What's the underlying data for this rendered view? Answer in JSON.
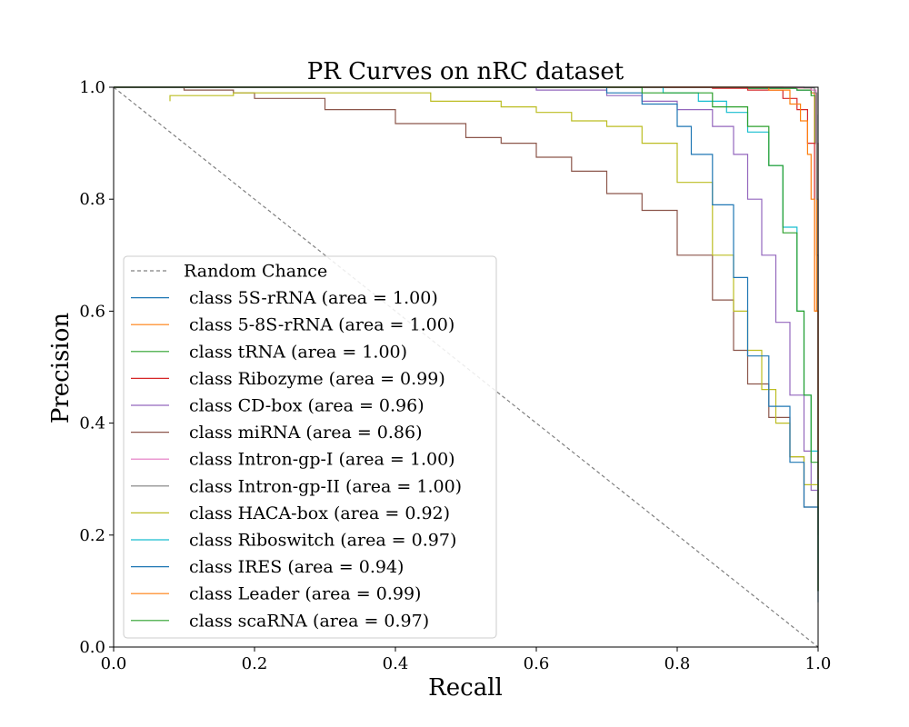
{
  "chart_data": {
    "type": "line",
    "title": "PR Curves on nRC dataset",
    "xlabel": "Recall",
    "ylabel": "Precision",
    "xlim": [
      0,
      1
    ],
    "ylim": [
      0,
      1
    ],
    "xticks": [
      "0.0",
      "0.2",
      "0.4",
      "0.6",
      "0.8",
      "1.0"
    ],
    "yticks": [
      "0.0",
      "0.2",
      "0.4",
      "0.6",
      "0.8",
      "1.0"
    ],
    "grid": false,
    "legend_position": "lower-left",
    "reference": {
      "name": "Random Chance",
      "color": "#808080",
      "style": "dashed",
      "points": [
        [
          0,
          1
        ],
        [
          1,
          0
        ]
      ]
    },
    "series": [
      {
        "name": " class 5S-rRNA (area = 1.00)",
        "color": "#1f77b4",
        "points": [
          [
            0,
            1.0
          ],
          [
            0.75,
            1.0
          ],
          [
            0.9,
            0.998
          ],
          [
            0.97,
            0.995
          ],
          [
            0.99,
            0.99
          ],
          [
            0.995,
            0.95
          ],
          [
            0.998,
            0.7
          ],
          [
            1.0,
            0.1
          ]
        ]
      },
      {
        "name": " class 5-8S-rRNA (area = 1.00)",
        "color": "#ff7f0e",
        "points": [
          [
            0,
            1.0
          ],
          [
            0.8,
            1.0
          ],
          [
            0.95,
            0.999
          ],
          [
            0.99,
            0.99
          ],
          [
            0.995,
            0.9
          ],
          [
            0.998,
            0.6
          ],
          [
            1.0,
            0.1
          ]
        ]
      },
      {
        "name": " class tRNA (area = 1.00)",
        "color": "#2ca02c",
        "points": [
          [
            0,
            1.0
          ],
          [
            0.7,
            1.0
          ],
          [
            0.9,
            0.998
          ],
          [
            0.97,
            0.995
          ],
          [
            0.99,
            0.985
          ],
          [
            0.996,
            0.9
          ],
          [
            1.0,
            0.1
          ]
        ]
      },
      {
        "name": " class Ribozyme (area = 0.99)",
        "color": "#d62728",
        "points": [
          [
            0,
            1.0
          ],
          [
            0.6,
            1.0
          ],
          [
            0.85,
            0.998
          ],
          [
            0.9,
            0.995
          ],
          [
            0.95,
            0.98
          ],
          [
            0.97,
            0.96
          ],
          [
            0.985,
            0.9
          ],
          [
            0.995,
            0.6
          ],
          [
            1.0,
            0.2
          ]
        ]
      },
      {
        "name": " class CD-box (area = 0.96)",
        "color": "#9467bd",
        "points": [
          [
            0,
            1.0
          ],
          [
            0.45,
            1.0
          ],
          [
            0.6,
            0.995
          ],
          [
            0.7,
            0.985
          ],
          [
            0.75,
            0.975
          ],
          [
            0.8,
            0.96
          ],
          [
            0.85,
            0.93
          ],
          [
            0.88,
            0.88
          ],
          [
            0.9,
            0.8
          ],
          [
            0.92,
            0.7
          ],
          [
            0.94,
            0.58
          ],
          [
            0.96,
            0.45
          ],
          [
            0.98,
            0.35
          ],
          [
            0.99,
            0.28
          ],
          [
            1.0,
            0.12
          ]
        ]
      },
      {
        "name": " class miRNA (area = 0.86)",
        "color": "#8c564b",
        "points": [
          [
            0,
            1.0
          ],
          [
            0.1,
            0.995
          ],
          [
            0.17,
            0.99
          ],
          [
            0.2,
            0.98
          ],
          [
            0.3,
            0.96
          ],
          [
            0.4,
            0.935
          ],
          [
            0.5,
            0.91
          ],
          [
            0.55,
            0.9
          ],
          [
            0.6,
            0.875
          ],
          [
            0.65,
            0.85
          ],
          [
            0.7,
            0.81
          ],
          [
            0.75,
            0.78
          ],
          [
            0.8,
            0.7
          ],
          [
            0.85,
            0.62
          ],
          [
            0.88,
            0.53
          ],
          [
            0.9,
            0.47
          ],
          [
            0.93,
            0.41
          ],
          [
            0.96,
            0.34
          ],
          [
            0.98,
            0.25
          ],
          [
            1.0,
            0.1
          ]
        ]
      },
      {
        "name": " class Intron-gp-I (area = 1.00)",
        "color": "#e377c2",
        "points": [
          [
            0,
            1.0
          ],
          [
            0.85,
            1.0
          ],
          [
            0.97,
            0.999
          ],
          [
            0.99,
            0.995
          ],
          [
            0.997,
            0.9
          ],
          [
            1.0,
            0.15
          ]
        ]
      },
      {
        "name": " class Intron-gp-II (area = 1.00)",
        "color": "#7f7f7f",
        "points": [
          [
            0,
            1.0
          ],
          [
            0.85,
            1.0
          ],
          [
            0.98,
            0.999
          ],
          [
            0.995,
            0.99
          ],
          [
            0.998,
            0.8
          ],
          [
            1.0,
            0.2
          ]
        ]
      },
      {
        "name": " class HACA-box (area = 0.92)",
        "color": "#bcbd22",
        "points": [
          [
            0.08,
            0.975
          ],
          [
            0.08,
            0.985
          ],
          [
            0.17,
            0.99
          ],
          [
            0.3,
            0.99
          ],
          [
            0.45,
            0.975
          ],
          [
            0.55,
            0.965
          ],
          [
            0.6,
            0.955
          ],
          [
            0.65,
            0.94
          ],
          [
            0.7,
            0.93
          ],
          [
            0.75,
            0.9
          ],
          [
            0.8,
            0.83
          ],
          [
            0.85,
            0.7
          ],
          [
            0.88,
            0.6
          ],
          [
            0.9,
            0.53
          ],
          [
            0.92,
            0.46
          ],
          [
            0.94,
            0.4
          ],
          [
            0.96,
            0.34
          ],
          [
            0.98,
            0.29
          ],
          [
            1.0,
            0.15
          ]
        ]
      },
      {
        "name": " class Riboswitch (area = 0.97)",
        "color": "#17becf",
        "points": [
          [
            0,
            1.0
          ],
          [
            0.7,
            1.0
          ],
          [
            0.78,
            0.99
          ],
          [
            0.83,
            0.975
          ],
          [
            0.87,
            0.955
          ],
          [
            0.9,
            0.92
          ],
          [
            0.93,
            0.86
          ],
          [
            0.95,
            0.75
          ],
          [
            0.97,
            0.6
          ],
          [
            0.98,
            0.45
          ],
          [
            0.99,
            0.35
          ],
          [
            1.0,
            0.15
          ]
        ]
      },
      {
        "name": " class IRES (area = 0.94)",
        "color": "#1f77b4",
        "points": [
          [
            0,
            1.0
          ],
          [
            0.6,
            1.0
          ],
          [
            0.7,
            0.99
          ],
          [
            0.75,
            0.97
          ],
          [
            0.8,
            0.93
          ],
          [
            0.82,
            0.88
          ],
          [
            0.85,
            0.79
          ],
          [
            0.88,
            0.66
          ],
          [
            0.9,
            0.52
          ],
          [
            0.93,
            0.43
          ],
          [
            0.96,
            0.33
          ],
          [
            0.98,
            0.25
          ],
          [
            1.0,
            0.08
          ]
        ]
      },
      {
        "name": " class Leader (area = 0.99)",
        "color": "#ff7f0e",
        "points": [
          [
            0,
            1.0
          ],
          [
            0.85,
            1.0
          ],
          [
            0.93,
            0.995
          ],
          [
            0.96,
            0.97
          ],
          [
            0.975,
            0.94
          ],
          [
            0.985,
            0.88
          ],
          [
            0.99,
            0.8
          ],
          [
            0.995,
            0.6
          ],
          [
            1.0,
            0.3
          ]
        ]
      },
      {
        "name": " class scaRNA (area = 0.97)",
        "color": "#2ca02c",
        "points": [
          [
            0,
            1.0
          ],
          [
            0.6,
            1.0
          ],
          [
            0.75,
            0.99
          ],
          [
            0.85,
            0.965
          ],
          [
            0.9,
            0.93
          ],
          [
            0.93,
            0.86
          ],
          [
            0.95,
            0.74
          ],
          [
            0.97,
            0.6
          ],
          [
            0.98,
            0.45
          ],
          [
            0.99,
            0.33
          ],
          [
            1.0,
            0.1
          ]
        ]
      }
    ]
  }
}
